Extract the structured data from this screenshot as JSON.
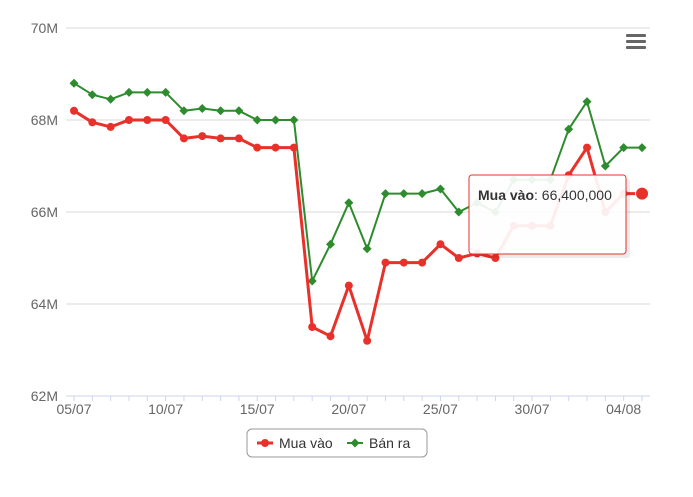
{
  "chart_data": {
    "type": "line",
    "x": [
      "05/07",
      "06/07",
      "07/07",
      "08/07",
      "09/07",
      "10/07",
      "11/07",
      "12/07",
      "13/07",
      "14/07",
      "15/07",
      "16/07",
      "17/07",
      "18/07",
      "19/07",
      "20/07",
      "21/07",
      "22/07",
      "23/07",
      "24/07",
      "25/07",
      "26/07",
      "27/07",
      "28/07",
      "29/07",
      "30/07",
      "31/07",
      "01/08",
      "02/08",
      "03/08",
      "04/08",
      "05/08"
    ],
    "x_tick_labels": [
      "05/07",
      "10/07",
      "15/07",
      "20/07",
      "25/07",
      "30/07",
      "04/08"
    ],
    "y_tick_labels": [
      "62M",
      "64M",
      "66M",
      "68M",
      "70M"
    ],
    "ylim": [
      62000000,
      70000000
    ],
    "y_tick_step": 2000000,
    "grid": true,
    "legend_position": "bottom-center",
    "series": [
      {
        "name": "Mua vào",
        "color": "#e8312a",
        "marker": "circle",
        "values": [
          68200000,
          67950000,
          67850000,
          68000000,
          68000000,
          68000000,
          67600000,
          67650000,
          67600000,
          67600000,
          67400000,
          67400000,
          67400000,
          63500000,
          63300000,
          64400000,
          63200000,
          64900000,
          64900000,
          64900000,
          65300000,
          65000000,
          65100000,
          65000000,
          65700000,
          65700000,
          65700000,
          66800000,
          67400000,
          66000000,
          66400000,
          66400000
        ]
      },
      {
        "name": "Bán ra",
        "color": "#2e8b2e",
        "marker": "diamond",
        "values": [
          68800000,
          68550000,
          68450000,
          68600000,
          68600000,
          68600000,
          68200000,
          68250000,
          68200000,
          68200000,
          68000000,
          68000000,
          68000000,
          64500000,
          65300000,
          66200000,
          65200000,
          66400000,
          66400000,
          66400000,
          66500000,
          66000000,
          66200000,
          66000000,
          66700000,
          66700000,
          66700000,
          67800000,
          68400000,
          67000000,
          67400000,
          67400000
        ]
      }
    ],
    "tooltip": {
      "series_name": "Mua vào",
      "value_text": "66,400,000",
      "point_index": 31
    }
  },
  "menu_icon": "hamburger-menu-icon"
}
